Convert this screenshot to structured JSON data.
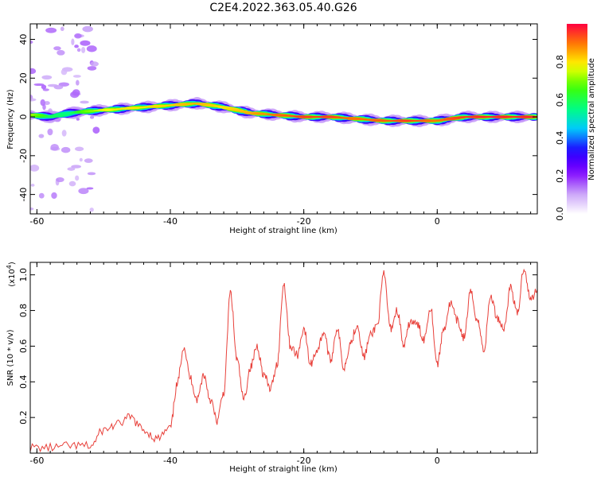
{
  "figure": {
    "title": "C2E4.2022.363.05.40.G26"
  },
  "colors": {
    "snr_line": "#e8403a",
    "axis": "#000000",
    "background": "#ffffff"
  },
  "chart_data": [
    {
      "type": "heatmap",
      "name": "spectrogram",
      "xlabel": "Height of straight line (km)",
      "ylabel": "Frequency (Hz)",
      "xlim": [
        -61,
        15
      ],
      "ylim": [
        -50,
        48
      ],
      "xticks": [
        -60,
        -40,
        -20,
        0
      ],
      "yticks": [
        -40,
        -20,
        0,
        20,
        40
      ],
      "colorbar": {
        "label": "Normalized spectral amplitude",
        "range": [
          0.0,
          1.0
        ],
        "ticks": [
          0.0,
          0.2,
          0.4,
          0.6,
          0.8
        ],
        "colormap": [
          "#ffffff",
          "#c8a0f8",
          "#7f00ff",
          "#2000ff",
          "#00c8ff",
          "#00ff80",
          "#40ff00",
          "#ffff00",
          "#ff8000",
          "#ff0040"
        ]
      },
      "ridge": {
        "description_free": true,
        "height_km": [
          -61,
          -58,
          -55,
          -52,
          -48,
          -44,
          -40,
          -36,
          -32,
          -28,
          -24,
          -20,
          -16,
          -12,
          -8,
          -4,
          0,
          4,
          8,
          12,
          15
        ],
        "frequency_hz": [
          1,
          0,
          2,
          3,
          4,
          5,
          6,
          7,
          5,
          2,
          1,
          0,
          0,
          -1,
          -2,
          -2,
          -2,
          0,
          0,
          0,
          0
        ],
        "intensity": [
          0.75,
          0.6,
          0.55,
          0.7,
          0.8,
          0.8,
          0.82,
          0.85,
          0.8,
          0.85,
          0.9,
          0.95,
          0.95,
          0.9,
          0.92,
          0.95,
          0.9,
          0.95,
          0.97,
          0.97,
          0.97
        ]
      },
      "noise_region_km": [
        -61,
        -51
      ]
    },
    {
      "type": "line",
      "name": "snr",
      "xlabel": "Height of straight line (km)",
      "ylabel": "SNR (10 * v/v)",
      "yscale_label": "(x10",
      "yscale_exp": "4",
      "yscale_close": ")",
      "xlim": [
        -61,
        15
      ],
      "ylim": [
        0,
        1.07
      ],
      "xticks": [
        -60,
        -40,
        -20,
        0
      ],
      "yticks": [
        0.2,
        0.4,
        0.6,
        0.8,
        1.0
      ],
      "ytick_labels": [
        "0.2",
        "0.4",
        "0.6",
        "0.8",
        "1.0"
      ],
      "x": [
        -61,
        -58,
        -55,
        -52,
        -50,
        -48,
        -46,
        -44,
        -42,
        -40,
        -39,
        -38,
        -37,
        -36,
        -35,
        -34,
        -33,
        -32,
        -31,
        -30,
        -29,
        -28,
        -27,
        -26,
        -25,
        -24,
        -23,
        -22,
        -21,
        -20,
        -19,
        -18,
        -17,
        -16,
        -15,
        -14,
        -13,
        -12,
        -11,
        -10,
        -9,
        -8,
        -7,
        -6,
        -5,
        -4,
        -3,
        -2,
        -1,
        0,
        1,
        2,
        3,
        4,
        5,
        6,
        7,
        8,
        9,
        10,
        11,
        12,
        13,
        14,
        15
      ],
      "y": [
        0.03,
        0.03,
        0.04,
        0.04,
        0.13,
        0.16,
        0.2,
        0.13,
        0.08,
        0.14,
        0.38,
        0.6,
        0.42,
        0.3,
        0.44,
        0.3,
        0.18,
        0.34,
        0.9,
        0.52,
        0.3,
        0.48,
        0.6,
        0.44,
        0.36,
        0.5,
        0.95,
        0.6,
        0.55,
        0.7,
        0.5,
        0.58,
        0.68,
        0.52,
        0.7,
        0.48,
        0.62,
        0.72,
        0.54,
        0.66,
        0.72,
        1.0,
        0.7,
        0.8,
        0.6,
        0.74,
        0.72,
        0.64,
        0.82,
        0.5,
        0.7,
        0.84,
        0.74,
        0.65,
        0.9,
        0.75,
        0.58,
        0.88,
        0.76,
        0.7,
        0.93,
        0.78,
        1.04,
        0.86,
        0.92
      ]
    }
  ]
}
